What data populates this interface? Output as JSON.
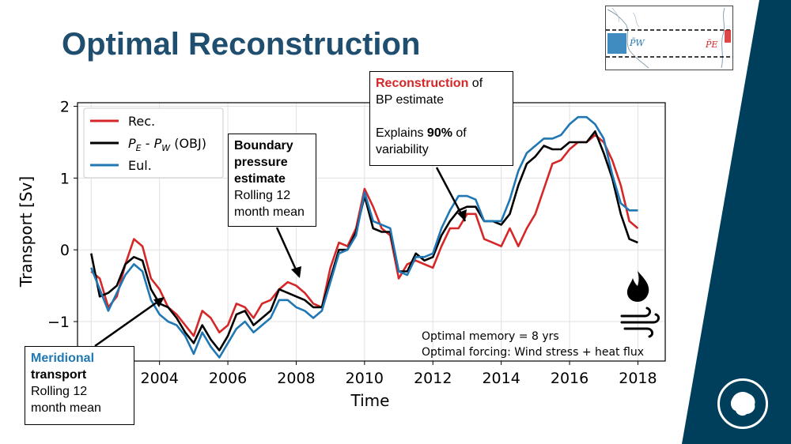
{
  "slide": {
    "title": "Optimal Reconstruction",
    "accent_color": "#003f5c",
    "title_color": "#1f4e6e"
  },
  "inset_map": {
    "label_w": "P̄W",
    "label_e": "P̄E"
  },
  "callouts": {
    "reconstruction": {
      "title_red": "Reconstruction",
      "title_rest": " of",
      "line2": "BP estimate",
      "line3_pre": "Explains ",
      "line3_bold": "90%",
      "line3_post": " of",
      "line4": "variability"
    },
    "boundary": {
      "line1": "Boundary",
      "line2": "pressure",
      "line3": "estimate",
      "line4": "Rolling 12",
      "line5": "month mean"
    },
    "meridional": {
      "line1": "Meridional",
      "line2": "transport",
      "line3": "Rolling 12",
      "line4": "month mean"
    }
  },
  "annotation": {
    "memory": "Optimal memory = 8 yrs",
    "forcing": "Optimal forcing: Wind stress + heat flux",
    "fire_icon": "fire-icon",
    "wind_icon": "wind-icon"
  },
  "logo_icon": "antarctica-icon",
  "chart_data": {
    "type": "line",
    "title": "",
    "xlabel": "Time",
    "ylabel": "Transport [Sv]",
    "xlim": [
      2001.6,
      2018.8
    ],
    "ylim": [
      -1.55,
      2.05
    ],
    "xticks": [
      2002,
      2004,
      2006,
      2008,
      2010,
      2012,
      2014,
      2016,
      2018
    ],
    "xtick_labels": [
      "2002",
      "2004",
      "2006",
      "2008",
      "2010",
      "2012",
      "2014",
      "2016",
      "2018"
    ],
    "yticks": [
      -1,
      0,
      1,
      2
    ],
    "ytick_labels": [
      "−1",
      "0",
      "1",
      "2"
    ],
    "grid": true,
    "legend_position": "top-left",
    "series": [
      {
        "name": "Rec.",
        "color": "#d62728",
        "x": [
          2002.0,
          2002.25,
          2002.5,
          2002.75,
          2003.0,
          2003.25,
          2003.5,
          2003.75,
          2004.0,
          2004.25,
          2004.5,
          2004.75,
          2005.0,
          2005.25,
          2005.5,
          2005.75,
          2006.0,
          2006.25,
          2006.5,
          2006.75,
          2007.0,
          2007.25,
          2007.5,
          2007.75,
          2008.0,
          2008.25,
          2008.5,
          2008.75,
          2009.0,
          2009.25,
          2009.5,
          2009.75,
          2010.0,
          2010.25,
          2010.5,
          2010.75,
          2011.0,
          2011.25,
          2011.5,
          2011.75,
          2012.0,
          2012.25,
          2012.5,
          2012.75,
          2013.0,
          2013.25,
          2013.5,
          2013.75,
          2014.0,
          2014.25,
          2014.5,
          2014.75,
          2015.0,
          2015.25,
          2015.5,
          2015.75,
          2016.0,
          2016.25,
          2016.5,
          2016.75,
          2017.0,
          2017.25,
          2017.5,
          2017.75,
          2018.0
        ],
        "y": [
          -0.3,
          -0.4,
          -0.8,
          -0.65,
          -0.2,
          0.15,
          0.05,
          -0.4,
          -0.55,
          -0.8,
          -0.9,
          -1.05,
          -1.2,
          -0.85,
          -0.95,
          -1.15,
          -1.05,
          -0.75,
          -0.8,
          -0.95,
          -0.75,
          -0.7,
          -0.55,
          -0.45,
          -0.5,
          -0.6,
          -0.75,
          -0.8,
          -0.25,
          0.1,
          0.05,
          0.3,
          0.85,
          0.6,
          0.3,
          0.2,
          -0.4,
          -0.2,
          -0.15,
          -0.2,
          -0.25,
          0.05,
          0.3,
          0.3,
          0.5,
          0.5,
          0.15,
          0.1,
          0.05,
          0.3,
          0.05,
          0.3,
          0.5,
          0.85,
          1.2,
          1.25,
          1.4,
          1.5,
          1.5,
          1.6,
          1.5,
          1.25,
          0.9,
          0.4,
          0.3
        ]
      },
      {
        "name": "P_E - P_W (OBJ)",
        "color": "#000000",
        "x": [
          2002.0,
          2002.25,
          2002.5,
          2002.75,
          2003.0,
          2003.25,
          2003.5,
          2003.75,
          2004.0,
          2004.25,
          2004.5,
          2004.75,
          2005.0,
          2005.25,
          2005.5,
          2005.75,
          2006.0,
          2006.25,
          2006.5,
          2006.75,
          2007.0,
          2007.25,
          2007.5,
          2007.75,
          2008.0,
          2008.25,
          2008.5,
          2008.75,
          2009.0,
          2009.25,
          2009.5,
          2009.75,
          2010.0,
          2010.25,
          2010.5,
          2010.75,
          2011.0,
          2011.25,
          2011.5,
          2011.75,
          2012.0,
          2012.25,
          2012.5,
          2012.75,
          2013.0,
          2013.25,
          2013.5,
          2013.75,
          2014.0,
          2014.25,
          2014.5,
          2014.75,
          2015.0,
          2015.25,
          2015.5,
          2015.75,
          2016.0,
          2016.25,
          2016.5,
          2016.75,
          2017.0,
          2017.25,
          2017.5,
          2017.75,
          2018.0
        ],
        "y": [
          -0.05,
          -0.65,
          -0.6,
          -0.5,
          -0.2,
          -0.1,
          -0.15,
          -0.55,
          -0.75,
          -0.8,
          -0.95,
          -1.15,
          -1.3,
          -1.05,
          -1.25,
          -1.4,
          -1.2,
          -0.9,
          -0.85,
          -1.05,
          -0.95,
          -0.85,
          -0.55,
          -0.6,
          -0.65,
          -0.7,
          -0.8,
          -0.8,
          -0.4,
          0.0,
          0.0,
          0.25,
          0.75,
          0.3,
          0.25,
          0.25,
          -0.3,
          -0.3,
          -0.05,
          -0.15,
          -0.1,
          0.2,
          0.4,
          0.55,
          0.6,
          0.6,
          0.4,
          0.4,
          0.35,
          0.5,
          0.9,
          1.2,
          1.3,
          1.45,
          1.4,
          1.4,
          1.5,
          1.5,
          1.5,
          1.65,
          1.35,
          1.0,
          0.5,
          0.15,
          0.1
        ]
      },
      {
        "name": "Eul.",
        "color": "#1f77b4",
        "x": [
          2002.0,
          2002.25,
          2002.5,
          2002.75,
          2003.0,
          2003.25,
          2003.5,
          2003.75,
          2004.0,
          2004.25,
          2004.5,
          2004.75,
          2005.0,
          2005.25,
          2005.5,
          2005.75,
          2006.0,
          2006.25,
          2006.5,
          2006.75,
          2007.0,
          2007.25,
          2007.5,
          2007.75,
          2008.0,
          2008.25,
          2008.5,
          2008.75,
          2009.0,
          2009.25,
          2009.5,
          2009.75,
          2010.0,
          2010.25,
          2010.5,
          2010.75,
          2011.0,
          2011.25,
          2011.5,
          2011.75,
          2012.0,
          2012.25,
          2012.5,
          2012.75,
          2013.0,
          2013.25,
          2013.5,
          2013.75,
          2014.0,
          2014.25,
          2014.5,
          2014.75,
          2015.0,
          2015.25,
          2015.5,
          2015.75,
          2016.0,
          2016.25,
          2016.5,
          2016.75,
          2017.0,
          2017.25,
          2017.5,
          2017.75,
          2018.0
        ],
        "y": [
          -0.25,
          -0.55,
          -0.85,
          -0.6,
          -0.35,
          -0.2,
          -0.3,
          -0.7,
          -0.9,
          -1.0,
          -1.05,
          -1.2,
          -1.45,
          -1.15,
          -1.35,
          -1.5,
          -1.3,
          -1.1,
          -1.0,
          -1.15,
          -1.05,
          -0.95,
          -0.7,
          -0.7,
          -0.8,
          -0.85,
          -0.95,
          -0.85,
          -0.45,
          -0.05,
          0.0,
          0.2,
          0.8,
          0.4,
          0.35,
          0.3,
          -0.3,
          -0.35,
          -0.1,
          -0.1,
          -0.05,
          0.3,
          0.55,
          0.75,
          0.75,
          0.7,
          0.4,
          0.4,
          0.4,
          0.7,
          1.1,
          1.35,
          1.45,
          1.55,
          1.55,
          1.6,
          1.75,
          1.85,
          1.85,
          1.75,
          1.55,
          1.05,
          0.65,
          0.55,
          0.55
        ]
      }
    ]
  }
}
